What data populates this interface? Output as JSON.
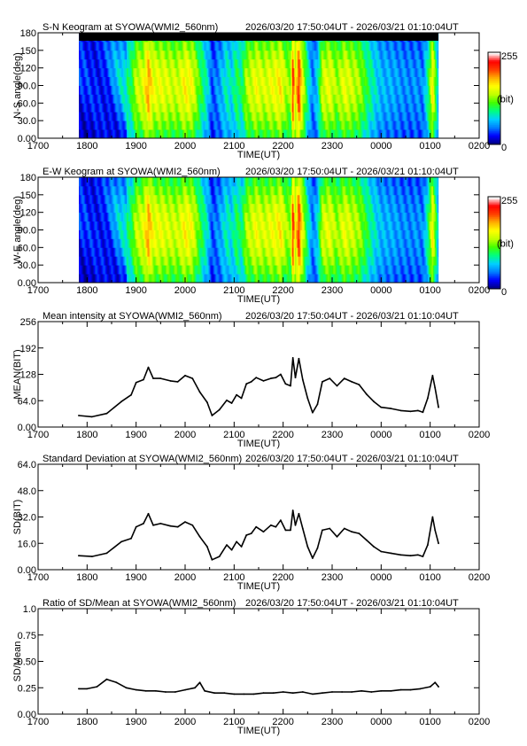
{
  "colors": {
    "axis": "#000000",
    "line": "#000000",
    "keogram_top_band": "#000000",
    "colormap": [
      "#000080",
      "#0000ff",
      "#0080ff",
      "#00d0ff",
      "#00ff80",
      "#40ff00",
      "#c0ff00",
      "#ffff00",
      "#ffb000",
      "#ff4000",
      "#ff0000",
      "#ffffff"
    ]
  },
  "shared": {
    "x_tick_labels": [
      "1700",
      "1800",
      "1900",
      "2000",
      "2100",
      "2200",
      "2300",
      "0000",
      "0100",
      "0200"
    ],
    "x_axis_title": "TIME(UT)",
    "time_range": "2026/03/20 17:50:04UT - 2026/03/21 01:10:04UT"
  },
  "chart_data": [
    {
      "type": "heatmap",
      "title": "S-N Keogram at SYOWA(WMI2_560nm)",
      "xlabel": "TIME(UT)",
      "ylabel": "N-S angle(deg)",
      "y_tick_labels": [
        "0.00",
        "30.0",
        "60.0",
        "90.0",
        "120",
        "150",
        "180"
      ],
      "ylim": [
        0,
        180
      ],
      "xlim_hours": [
        17.0,
        26.0
      ],
      "data_start_hour": 17.834,
      "data_end_hour": 25.168,
      "colorbar": {
        "min_label": "0",
        "max_label": "255",
        "unit_label": "(bit)"
      }
    },
    {
      "type": "heatmap",
      "title": "E-W Keogram at SYOWA(WMI2_560nm)",
      "xlabel": "TIME(UT)",
      "ylabel": "W-E angle(deg)",
      "y_tick_labels": [
        "0.00",
        "30.0",
        "60.0",
        "90.0",
        "120",
        "150",
        "180"
      ],
      "ylim": [
        0,
        180
      ],
      "xlim_hours": [
        17.0,
        26.0
      ],
      "data_start_hour": 17.834,
      "data_end_hour": 25.168,
      "colorbar": {
        "min_label": "0",
        "max_label": "255",
        "unit_label": "(bit)"
      }
    },
    {
      "type": "line",
      "title": "Mean intensity at SYOWA(WMI2_560nm)",
      "xlabel": "TIME(UT)",
      "ylabel": "MEAN(BIT)",
      "y_tick_labels": [
        "0.00",
        "64.0",
        "128",
        "192",
        "256"
      ],
      "ylim": [
        0,
        256
      ],
      "xlim_hours": [
        17.0,
        26.0
      ],
      "x": [
        17.83,
        18.1,
        18.4,
        18.7,
        18.9,
        19.0,
        19.15,
        19.25,
        19.35,
        19.5,
        19.7,
        19.85,
        20.0,
        20.15,
        20.3,
        20.45,
        20.55,
        20.7,
        20.85,
        20.95,
        21.05,
        21.15,
        21.25,
        21.35,
        21.45,
        21.6,
        21.75,
        21.85,
        21.95,
        22.05,
        22.15,
        22.2,
        22.25,
        22.32,
        22.4,
        22.5,
        22.6,
        22.7,
        22.8,
        22.95,
        23.1,
        23.25,
        23.4,
        23.55,
        23.7,
        23.85,
        24.0,
        24.2,
        24.4,
        24.6,
        24.75,
        24.85,
        24.95,
        25.05,
        25.1,
        25.17
      ],
      "y": [
        28,
        25,
        33,
        62,
        78,
        108,
        115,
        145,
        118,
        118,
        112,
        110,
        125,
        118,
        85,
        60,
        28,
        42,
        65,
        58,
        78,
        70,
        105,
        110,
        120,
        112,
        118,
        120,
        128,
        105,
        100,
        168,
        120,
        166,
        115,
        70,
        35,
        55,
        110,
        118,
        100,
        118,
        110,
        103,
        80,
        62,
        48,
        45,
        40,
        38,
        40,
        36,
        70,
        125,
        95,
        48
      ]
    },
    {
      "type": "line",
      "title": "Standard Deviation at SYOWA(WMI2_560nm)",
      "xlabel": "TIME(UT)",
      "ylabel": "SD(BIT)",
      "y_tick_labels": [
        "0.00",
        "16.0",
        "32.0",
        "48.0",
        "64.0"
      ],
      "ylim": [
        0,
        64
      ],
      "xlim_hours": [
        17.0,
        26.0
      ],
      "x": [
        17.83,
        18.1,
        18.4,
        18.7,
        18.9,
        19.0,
        19.15,
        19.25,
        19.35,
        19.5,
        19.7,
        19.85,
        20.0,
        20.15,
        20.3,
        20.45,
        20.55,
        20.7,
        20.85,
        20.95,
        21.05,
        21.15,
        21.25,
        21.35,
        21.45,
        21.6,
        21.75,
        21.85,
        21.95,
        22.05,
        22.15,
        22.2,
        22.25,
        22.32,
        22.4,
        22.5,
        22.6,
        22.7,
        22.8,
        22.95,
        23.1,
        23.25,
        23.4,
        23.55,
        23.7,
        23.85,
        24.0,
        24.2,
        24.4,
        24.6,
        24.75,
        24.85,
        24.95,
        25.05,
        25.1,
        25.17
      ],
      "y": [
        8.5,
        8.0,
        10.0,
        17.0,
        19.0,
        26.0,
        28.0,
        34.0,
        27.0,
        28.0,
        26.5,
        26.0,
        29.0,
        27.0,
        20.0,
        14.0,
        6.0,
        8.0,
        15.0,
        12.0,
        17.0,
        14.0,
        21.0,
        22.0,
        26.0,
        23.0,
        27.0,
        26.0,
        30.0,
        24.0,
        24.0,
        36.0,
        27.0,
        34.0,
        25.0,
        14.0,
        7.0,
        13.0,
        24.0,
        25.0,
        20.0,
        25.0,
        23.0,
        22.0,
        18.0,
        14.0,
        11.0,
        10.0,
        9.0,
        8.5,
        9.0,
        8.0,
        15.0,
        32.0,
        24.0,
        16.0
      ]
    },
    {
      "type": "line",
      "title": "Ratio of SD/Mean at SYOWA(WMI2_560nm)",
      "xlabel": "TIME(UT)",
      "ylabel": "SD/Mean",
      "y_tick_labels": [
        "0.00",
        "0.25",
        "0.50",
        "0.75",
        "1.0"
      ],
      "ylim": [
        0,
        1
      ],
      "xlim_hours": [
        17.0,
        26.0
      ],
      "x": [
        17.83,
        18.0,
        18.2,
        18.4,
        18.6,
        18.8,
        19.0,
        19.2,
        19.4,
        19.6,
        19.8,
        20.0,
        20.2,
        20.3,
        20.4,
        20.6,
        20.8,
        21.0,
        21.2,
        21.4,
        21.6,
        21.8,
        22.0,
        22.2,
        22.4,
        22.6,
        22.8,
        23.0,
        23.2,
        23.4,
        23.6,
        23.8,
        24.0,
        24.2,
        24.4,
        24.6,
        24.8,
        25.0,
        25.1,
        25.17
      ],
      "y": [
        0.24,
        0.24,
        0.26,
        0.33,
        0.3,
        0.25,
        0.23,
        0.22,
        0.22,
        0.21,
        0.21,
        0.23,
        0.25,
        0.3,
        0.22,
        0.2,
        0.2,
        0.19,
        0.19,
        0.19,
        0.2,
        0.2,
        0.21,
        0.2,
        0.21,
        0.19,
        0.2,
        0.21,
        0.21,
        0.21,
        0.22,
        0.21,
        0.22,
        0.22,
        0.23,
        0.23,
        0.24,
        0.26,
        0.3,
        0.26
      ]
    }
  ]
}
